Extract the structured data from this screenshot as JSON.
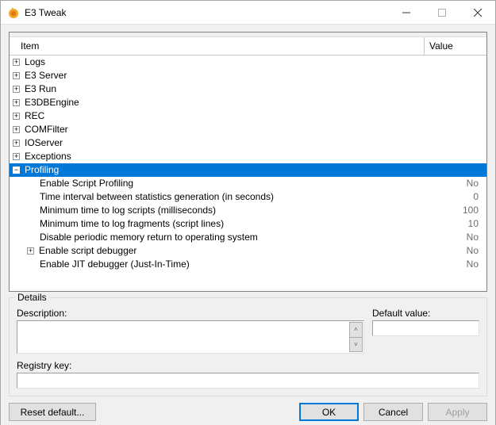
{
  "window": {
    "title": "E3 Tweak",
    "icon_color_outer": "#f5a623",
    "icon_color_inner": "#d97c12"
  },
  "columns": {
    "item": "Item",
    "value": "Value"
  },
  "selected_row_index": 8,
  "colors": {
    "selection_bg": "#0078d7",
    "selection_fg": "#ffffff",
    "value_fg": "#6d6d6d",
    "window_bg": "#f0f0f0",
    "grid_border": "#828282",
    "header_divider": "#c8c8c8",
    "button_bg": "#e1e1e1",
    "button_border": "#adadad",
    "button_default_border": "#0078d7"
  },
  "rows": [
    {
      "level": 0,
      "expand": "plus",
      "label": "Logs",
      "value": ""
    },
    {
      "level": 0,
      "expand": "plus",
      "label": "E3 Server",
      "value": ""
    },
    {
      "level": 0,
      "expand": "plus",
      "label": "E3 Run",
      "value": ""
    },
    {
      "level": 0,
      "expand": "plus",
      "label": "E3DBEngine",
      "value": ""
    },
    {
      "level": 0,
      "expand": "plus",
      "label": "REC",
      "value": ""
    },
    {
      "level": 0,
      "expand": "plus",
      "label": "COMFilter",
      "value": ""
    },
    {
      "level": 0,
      "expand": "plus",
      "label": "IOServer",
      "value": ""
    },
    {
      "level": 0,
      "expand": "plus",
      "label": "Exceptions",
      "value": ""
    },
    {
      "level": 0,
      "expand": "minus",
      "label": "Profiling",
      "value": ""
    },
    {
      "level": 1,
      "expand": "none",
      "label": "Enable Script Profiling",
      "value": "No"
    },
    {
      "level": 1,
      "expand": "none",
      "label": "Time interval between statistics generation (in seconds)",
      "value": "0"
    },
    {
      "level": 1,
      "expand": "none",
      "label": "Minimum time to log scripts (milliseconds)",
      "value": "100"
    },
    {
      "level": 1,
      "expand": "none",
      "label": "Minimum time to log fragments (script lines)",
      "value": "10"
    },
    {
      "level": 1,
      "expand": "none",
      "label": "Disable periodic memory return to operating system",
      "value": "No"
    },
    {
      "level": 1,
      "expand": "plus",
      "label": "Enable script debugger",
      "value": "No"
    },
    {
      "level": 1,
      "expand": "none",
      "label": "Enable JIT debugger (Just-In-Time)",
      "value": "No"
    }
  ],
  "details": {
    "groupbox_label": "Details",
    "description_label": "Description:",
    "description_value": "",
    "default_value_label": "Default value:",
    "default_value": "",
    "registry_key_label": "Registry key:",
    "registry_key_value": ""
  },
  "buttons": {
    "reset": "Reset default...",
    "ok": "OK",
    "cancel": "Cancel",
    "apply": "Apply"
  }
}
